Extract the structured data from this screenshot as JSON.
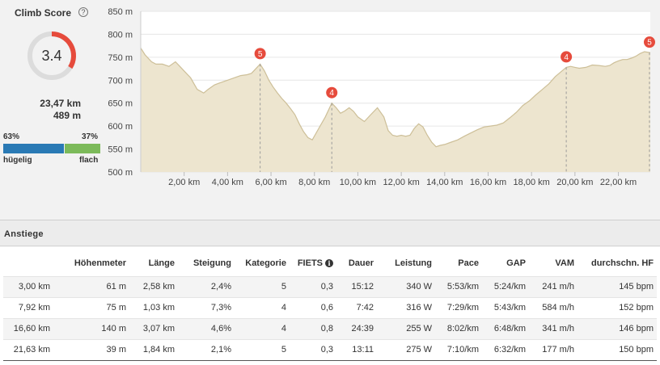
{
  "climb_score": {
    "title": "Climb Score",
    "help_icon": "?",
    "score": "3.4",
    "score_value": 3.4,
    "score_max": 10,
    "distance": "23,47 km",
    "elevation": "489 m",
    "hilly_pct": "63%",
    "flat_pct": "37%",
    "hilly_fraction": 0.63,
    "hilly_label": "hügelig",
    "flat_label": "flach",
    "colors": {
      "arc": "#e64b3c",
      "track": "#dcdcdc",
      "hilly": "#2a7ab5",
      "flat": "#7cba5a"
    }
  },
  "chart_data": {
    "type": "area",
    "x_label": "",
    "y_label": "",
    "xlim": [
      0,
      23.47
    ],
    "ylim": [
      500,
      850
    ],
    "y_ticks": [
      500,
      550,
      600,
      650,
      700,
      750,
      800,
      850
    ],
    "y_tick_labels": [
      "500 m",
      "550 m",
      "600 m",
      "650 m",
      "700 m",
      "750 m",
      "800 m",
      "850 m"
    ],
    "x_ticks": [
      2,
      4,
      6,
      8,
      10,
      12,
      14,
      16,
      18,
      20,
      22
    ],
    "x_tick_labels": [
      "2,00 km",
      "4,00 km",
      "6,00 km",
      "8,00 km",
      "10,00 km",
      "12,00 km",
      "14,00 km",
      "16,00 km",
      "18,00 km",
      "20,00 km",
      "22,00 km"
    ],
    "grid": true,
    "fill_color": "#ede5cf",
    "line_color": "#cdbf98",
    "x": [
      0,
      0.2,
      0.5,
      0.7,
      1.0,
      1.3,
      1.6,
      1.8,
      2.0,
      2.3,
      2.6,
      2.9,
      3.1,
      3.4,
      3.7,
      4.0,
      4.3,
      4.6,
      4.9,
      5.1,
      5.3,
      5.5,
      5.7,
      5.9,
      6.1,
      6.3,
      6.5,
      6.7,
      6.9,
      7.1,
      7.3,
      7.5,
      7.7,
      7.9,
      8.2,
      8.5,
      8.8,
      9.0,
      9.2,
      9.4,
      9.6,
      9.8,
      10.0,
      10.3,
      10.6,
      10.9,
      11.2,
      11.4,
      11.6,
      11.8,
      12.0,
      12.2,
      12.4,
      12.6,
      12.8,
      13.0,
      13.2,
      13.4,
      13.6,
      13.8,
      14.0,
      14.3,
      14.6,
      14.9,
      15.2,
      15.5,
      15.8,
      16.1,
      16.4,
      16.7,
      17.0,
      17.3,
      17.6,
      17.9,
      18.2,
      18.5,
      18.8,
      19.1,
      19.4,
      19.6,
      19.8,
      20.0,
      20.2,
      20.5,
      20.8,
      21.1,
      21.4,
      21.6,
      21.8,
      22.0,
      22.2,
      22.4,
      22.6,
      22.8,
      23.0,
      23.2,
      23.47
    ],
    "y": [
      770,
      755,
      740,
      735,
      735,
      730,
      740,
      730,
      720,
      705,
      680,
      672,
      680,
      690,
      695,
      700,
      705,
      710,
      712,
      715,
      725,
      735,
      720,
      700,
      685,
      672,
      660,
      650,
      638,
      625,
      605,
      588,
      575,
      570,
      595,
      620,
      650,
      640,
      628,
      633,
      640,
      632,
      620,
      610,
      625,
      640,
      620,
      590,
      580,
      578,
      580,
      578,
      580,
      595,
      605,
      598,
      580,
      565,
      555,
      558,
      560,
      565,
      570,
      578,
      585,
      592,
      598,
      600,
      602,
      607,
      618,
      630,
      645,
      655,
      668,
      680,
      692,
      708,
      720,
      728,
      730,
      728,
      726,
      728,
      733,
      732,
      730,
      732,
      738,
      742,
      745,
      745,
      748,
      752,
      758,
      762,
      760
    ],
    "climb_markers": [
      {
        "x": 5.5,
        "y": 735,
        "category": "5"
      },
      {
        "x": 8.8,
        "y": 650,
        "category": "4"
      },
      {
        "x": 19.6,
        "y": 728,
        "category": "4"
      },
      {
        "x": 23.47,
        "y": 760,
        "category": "5"
      }
    ]
  },
  "climbs": {
    "title": "Anstiege",
    "columns": [
      "",
      "Höhenmeter",
      "Länge",
      "Steigung",
      "Kategorie",
      "FIETS",
      "Dauer",
      "Leistung",
      "Pace",
      "GAP",
      "VAM",
      "durchschn. HF"
    ],
    "info_icon": "i",
    "rows": [
      [
        "3,00 km",
        "61 m",
        "2,58 km",
        "2,4%",
        "5",
        "0,3",
        "15:12",
        "340 W",
        "5:53/km",
        "5:24/km",
        "241 m/h",
        "145 bpm"
      ],
      [
        "7,92 km",
        "75 m",
        "1,03 km",
        "7,3%",
        "4",
        "0,6",
        "7:42",
        "316 W",
        "7:29/km",
        "5:43/km",
        "584 m/h",
        "152 bpm"
      ],
      [
        "16,60 km",
        "140 m",
        "3,07 km",
        "4,6%",
        "4",
        "0,8",
        "24:39",
        "255 W",
        "8:02/km",
        "6:48/km",
        "341 m/h",
        "146 bpm"
      ],
      [
        "21,63 km",
        "39 m",
        "1,84 km",
        "2,1%",
        "5",
        "0,3",
        "13:11",
        "275 W",
        "7:10/km",
        "6:32/km",
        "177 m/h",
        "150 bpm"
      ]
    ]
  }
}
